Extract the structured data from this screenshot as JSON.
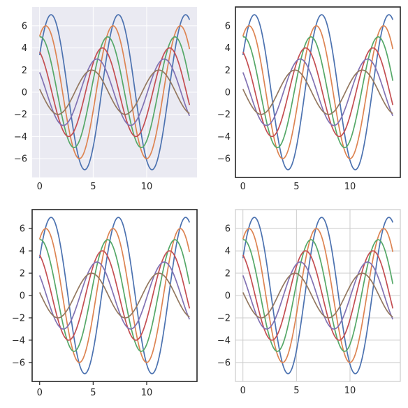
{
  "chart_data": [
    {
      "type": "line",
      "style": "darkgrid",
      "grid": true,
      "xlim": [
        -0.7,
        14.7
      ],
      "ylim": [
        -7.7,
        7.7
      ],
      "xticks": [
        0,
        5,
        10
      ],
      "yticks": [
        -6,
        -4,
        -2,
        0,
        2,
        4,
        6
      ],
      "x_range": [
        0,
        14
      ],
      "series": [
        {
          "amplitude": 7,
          "shift": 0.5,
          "color": "#4c72b0"
        },
        {
          "amplitude": 6,
          "shift": 1.0,
          "color": "#dd8452"
        },
        {
          "amplitude": 5,
          "shift": 1.5,
          "color": "#55a868"
        },
        {
          "amplitude": 4,
          "shift": 2.0,
          "color": "#c44e52"
        },
        {
          "amplitude": 3,
          "shift": 2.5,
          "color": "#8172b3"
        },
        {
          "amplitude": 2,
          "shift": 3.0,
          "color": "#937860"
        }
      ],
      "function": "y = amplitude * sin(x + shift)"
    },
    {
      "type": "line",
      "style": "white",
      "grid": false,
      "xlim": [
        -0.7,
        14.7
      ],
      "ylim": [
        -7.7,
        7.7
      ],
      "xticks": [
        0,
        5,
        10
      ],
      "yticks": [
        -6,
        -4,
        -2,
        0,
        2,
        4,
        6
      ],
      "x_range": [
        0,
        14
      ],
      "series": [
        {
          "amplitude": 7,
          "shift": 0.5,
          "color": "#4c72b0"
        },
        {
          "amplitude": 6,
          "shift": 1.0,
          "color": "#dd8452"
        },
        {
          "amplitude": 5,
          "shift": 1.5,
          "color": "#55a868"
        },
        {
          "amplitude": 4,
          "shift": 2.0,
          "color": "#c44e52"
        },
        {
          "amplitude": 3,
          "shift": 2.5,
          "color": "#8172b3"
        },
        {
          "amplitude": 2,
          "shift": 3.0,
          "color": "#937860"
        }
      ],
      "function": "y = amplitude * sin(x + shift)"
    },
    {
      "type": "line",
      "style": "ticks",
      "grid": false,
      "xlim": [
        -0.7,
        14.7
      ],
      "ylim": [
        -7.7,
        7.7
      ],
      "xticks": [
        0,
        5,
        10
      ],
      "yticks": [
        -6,
        -4,
        -2,
        0,
        2,
        4,
        6
      ],
      "x_range": [
        0,
        14
      ],
      "series": [
        {
          "amplitude": 7,
          "shift": 0.5,
          "color": "#4c72b0"
        },
        {
          "amplitude": 6,
          "shift": 1.0,
          "color": "#dd8452"
        },
        {
          "amplitude": 5,
          "shift": 1.5,
          "color": "#55a868"
        },
        {
          "amplitude": 4,
          "shift": 2.0,
          "color": "#c44e52"
        },
        {
          "amplitude": 3,
          "shift": 2.5,
          "color": "#8172b3"
        },
        {
          "amplitude": 2,
          "shift": 3.0,
          "color": "#937860"
        }
      ],
      "function": "y = amplitude * sin(x + shift)"
    },
    {
      "type": "line",
      "style": "whitegrid",
      "grid": true,
      "xlim": [
        -0.7,
        14.7
      ],
      "ylim": [
        -7.7,
        7.7
      ],
      "xticks": [
        0,
        5,
        10
      ],
      "yticks": [
        -6,
        -4,
        -2,
        0,
        2,
        4,
        6
      ],
      "x_range": [
        0,
        14
      ],
      "series": [
        {
          "amplitude": 7,
          "shift": 0.5,
          "color": "#4c72b0"
        },
        {
          "amplitude": 6,
          "shift": 1.0,
          "color": "#dd8452"
        },
        {
          "amplitude": 5,
          "shift": 1.5,
          "color": "#55a868"
        },
        {
          "amplitude": 4,
          "shift": 2.0,
          "color": "#c44e52"
        },
        {
          "amplitude": 3,
          "shift": 2.5,
          "color": "#8172b3"
        },
        {
          "amplitude": 2,
          "shift": 3.0,
          "color": "#937860"
        }
      ],
      "function": "y = amplitude * sin(x + shift)"
    }
  ]
}
